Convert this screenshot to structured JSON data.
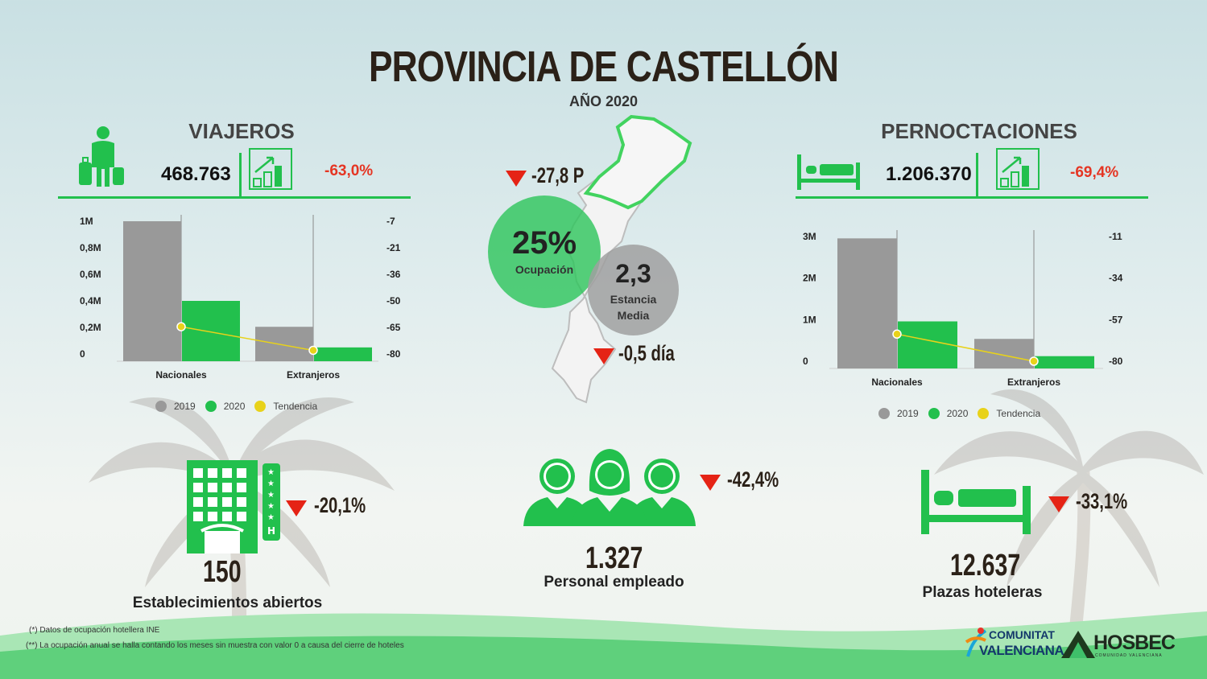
{
  "header": {
    "title": "PROVINCIA DE CASTELLÓN",
    "subtitle": "AÑO 2020"
  },
  "viajeros": {
    "title": "VIAJEROS",
    "total": "468.763",
    "change": "-63,0%",
    "left_ticks": [
      "1M",
      "0,8M",
      "0,6M",
      "0,4M",
      "0,2M",
      "0"
    ],
    "right_ticks": [
      "-7",
      "-21",
      "-36",
      "-50",
      "-65",
      "-80"
    ],
    "categories": [
      "Nacionales",
      "Extranjeros"
    ]
  },
  "pernoctaciones": {
    "title": "PERNOCTACIONES",
    "total": "1.206.370",
    "change": "-69,4%",
    "left_ticks": [
      "3M",
      "2M",
      "1M",
      "0"
    ],
    "right_ticks": [
      "-11",
      "-34",
      "-57",
      "-80"
    ],
    "categories": [
      "Nacionales",
      "Extranjeros"
    ]
  },
  "legend": {
    "y2019": "2019",
    "y2020": "2020",
    "trend": "Tendencia"
  },
  "center": {
    "ocupacion_delta": "-27,8 P",
    "ocupacion_value": "25%",
    "ocupacion_label": "Ocupación",
    "estancia_value": "2,3",
    "estancia_label_1": "Estancia",
    "estancia_label_2": "Media",
    "estancia_delta": "-0,5 día"
  },
  "kpis": {
    "establecimientos": {
      "value": "150",
      "label": "Establecimientos abiertos",
      "change": "-20,1%"
    },
    "personal": {
      "value": "1.327",
      "label": "Personal empleado",
      "change": "-42,4%"
    },
    "plazas": {
      "value": "12.637",
      "label": "Plazas hoteleras",
      "change": "-33,1%"
    }
  },
  "footnotes": [
    "(*) Datos de ocupación hotellera INE",
    "(**) La ocupación anual se halla contando los meses sin muestra  con valor 0 a causa del cierre de hoteles"
  ],
  "logos": {
    "cv_line1": "COMUNITAT",
    "cv_line2": "VALENCIANA",
    "hosbec": "HOSBEC",
    "hosbec_sub": "COMUNIDAD VALENCIANA"
  },
  "colors": {
    "green": "#22c04d",
    "grey": "#999999",
    "trend": "#e8d21a",
    "red": "#e53523"
  },
  "chart_data": [
    {
      "type": "bar",
      "title": "VIAJEROS",
      "categories": [
        "Nacionales",
        "Extranjeros"
      ],
      "series": [
        {
          "name": "2019",
          "values": [
            1050000,
            215000
          ]
        },
        {
          "name": "2020",
          "values": [
            420000,
            52000
          ]
        },
        {
          "name": "Tendencia",
          "type": "line",
          "axis": "right",
          "values": [
            -65,
            -78
          ]
        }
      ],
      "ylim": [
        0,
        1050000
      ],
      "y2lim": [
        -80,
        -7
      ],
      "grid": false,
      "legend": "bottom"
    },
    {
      "type": "bar",
      "title": "PERNOCTACIONES",
      "categories": [
        "Nacionales",
        "Extranjeros"
      ],
      "series": [
        {
          "name": "2019",
          "values": [
            3300000,
            600000
          ]
        },
        {
          "name": "2020",
          "values": [
            1070000,
            136000
          ]
        },
        {
          "name": "Tendencia",
          "type": "line",
          "axis": "right",
          "values": [
            -65,
            -80
          ]
        }
      ],
      "ylim": [
        0,
        3350000
      ],
      "y2lim": [
        -80,
        -11
      ],
      "grid": false,
      "legend": "bottom"
    }
  ]
}
